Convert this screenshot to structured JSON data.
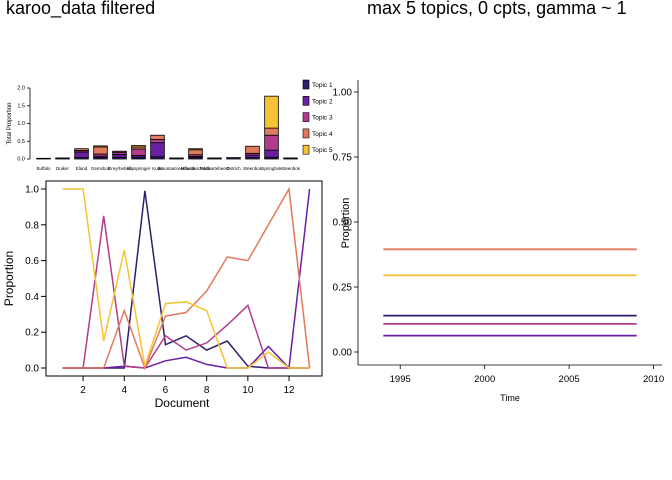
{
  "titles": {
    "left": "karoo_data filtered",
    "right": "max 5 topics, 0 cpts, gamma ~ 1"
  },
  "topic_colors": [
    "#2e1e6b",
    "#6a1fa3",
    "#b13d8c",
    "#e27a5d",
    "#f7c335"
  ],
  "chart_data": [
    {
      "type": "bar",
      "stacked": true,
      "ylabel": "Total Proportion",
      "ylim": [
        0,
        2.0
      ],
      "yticks": [
        "0.0",
        "0.5",
        "1.0",
        "1.5",
        "2.0"
      ],
      "categories": [
        "Buffalo",
        "Duiker",
        "Eland",
        "Gemsbok",
        "Greyrhebok",
        "Klipspringer",
        "Kudu",
        "Mountainreedbuck",
        "Mountainzebra",
        "Redhartebeest",
        "Ostrich",
        "Steenbok",
        "Springbok",
        "Steenbok"
      ],
      "tick_labels": [
        "Buffalo",
        "Duiker",
        "Eland",
        "Gemsbok",
        "Greyrhebok",
        "Klipspringer",
        "Kudu",
        "Mountainreedbuck",
        "Mountainzebra",
        "Redhartebeest",
        "Ostrich",
        "Steenbok",
        "Springbok",
        "Steenbok"
      ],
      "legend_labels": [
        "Topic 1",
        "Topic 2",
        "Topic 3",
        "Topic 4",
        "Topic 5"
      ],
      "legend_position": "right",
      "series": [
        {
          "name": "Topic 1",
          "values": [
            0.02,
            0.03,
            0.04,
            0.04,
            0.05,
            0.05,
            0.06,
            0.03,
            0.04,
            0.03,
            0.04,
            0.04,
            0.05,
            0.03
          ]
        },
        {
          "name": "Topic 2",
          "values": [
            0.0,
            0.0,
            0.16,
            0.04,
            0.08,
            0.05,
            0.4,
            0.0,
            0.03,
            0.0,
            0.0,
            0.07,
            0.2,
            0.0
          ]
        },
        {
          "name": "Topic 3",
          "values": [
            0.0,
            0.0,
            0.04,
            0.06,
            0.06,
            0.18,
            0.09,
            0.0,
            0.05,
            0.0,
            0.0,
            0.05,
            0.42,
            0.0
          ]
        },
        {
          "name": "Topic 4",
          "values": [
            0.0,
            0.0,
            0.05,
            0.2,
            0.03,
            0.06,
            0.12,
            0.0,
            0.14,
            0.0,
            0.0,
            0.2,
            0.2,
            0.0
          ]
        },
        {
          "name": "Topic 5",
          "values": [
            0.0,
            0.0,
            0.0,
            0.03,
            0.0,
            0.04,
            0.0,
            0.0,
            0.03,
            0.0,
            0.0,
            0.0,
            0.9,
            0.0
          ]
        }
      ]
    },
    {
      "type": "line",
      "xlabel": "Document",
      "ylabel": "Proportion",
      "xlim": [
        0.2,
        13.6
      ],
      "ylim": [
        0,
        1.0
      ],
      "xticks": [
        2,
        4,
        6,
        8,
        10,
        12
      ],
      "yticks": [
        "0.0",
        "0.2",
        "0.4",
        "0.6",
        "0.8",
        "1.0"
      ],
      "x": [
        1,
        2,
        3,
        4,
        5,
        6,
        7,
        8,
        9,
        10,
        11,
        12,
        13
      ],
      "series": [
        {
          "name": "Topic 1",
          "values": [
            0.0,
            0.0,
            0.0,
            0.0,
            0.99,
            0.13,
            0.18,
            0.1,
            0.15,
            0.01,
            0.0,
            0.0,
            0.0
          ]
        },
        {
          "name": "Topic 2",
          "values": [
            0.0,
            0.0,
            0.0,
            0.01,
            0.0,
            0.04,
            0.06,
            0.02,
            0.0,
            0.0,
            0.12,
            0.0,
            1.0
          ]
        },
        {
          "name": "Topic 3",
          "values": [
            0.0,
            0.0,
            0.85,
            0.01,
            0.0,
            0.18,
            0.1,
            0.14,
            0.24,
            0.35,
            0.0,
            0.0,
            0.0
          ]
        },
        {
          "name": "Topic 4",
          "values": [
            0.0,
            0.0,
            0.0,
            0.32,
            0.0,
            0.29,
            0.31,
            0.43,
            0.62,
            0.6,
            0.8,
            1.0,
            0.0
          ]
        },
        {
          "name": "Topic 5",
          "values": [
            1.0,
            1.0,
            0.15,
            0.66,
            0.01,
            0.36,
            0.37,
            0.32,
            0.0,
            0.0,
            0.09,
            0.0,
            0.0
          ]
        }
      ]
    },
    {
      "type": "line",
      "xlabel": "Time",
      "ylabel": "Proportion",
      "xlim": [
        1992.5,
        2010.5
      ],
      "ylim": [
        -0.05,
        1.05
      ],
      "xticks": [
        "1995",
        "2000",
        "2005",
        "2010"
      ],
      "yticks": [
        "0.00",
        "0.25",
        "0.50",
        "0.75",
        "1.00"
      ],
      "x": [
        1994,
        2009
      ],
      "series": [
        {
          "name": "Topic 1",
          "values": [
            0.14,
            0.14
          ]
        },
        {
          "name": "Topic 2",
          "values": [
            0.063,
            0.063
          ]
        },
        {
          "name": "Topic 3",
          "values": [
            0.108,
            0.108
          ]
        },
        {
          "name": "Topic 4",
          "values": [
            0.395,
            0.395
          ]
        },
        {
          "name": "Topic 5",
          "values": [
            0.295,
            0.295
          ]
        }
      ]
    }
  ]
}
